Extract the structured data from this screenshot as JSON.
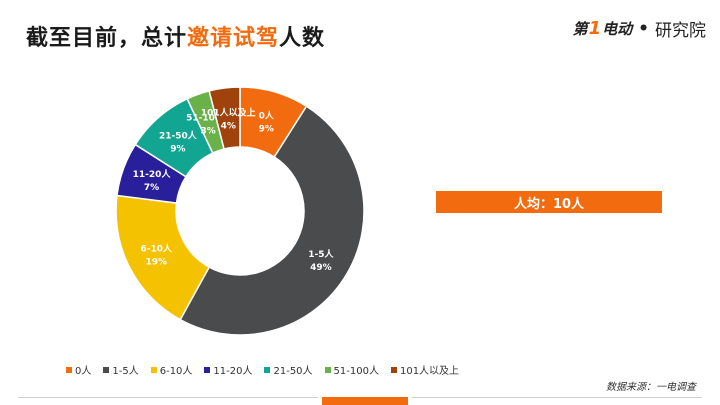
{
  "header": {
    "title_prefix": "截至目前，总计",
    "title_highlight": "邀请试驾",
    "title_suffix": "人数"
  },
  "logo": {
    "brand_a": "第",
    "brand_num": "1",
    "brand_b": "电动",
    "dot": "•",
    "brand_c": "研究院"
  },
  "summary": {
    "average_label": "人均：10人"
  },
  "source": "数据来源：一电调查",
  "colors": {
    "accent": "#f26b0f",
    "slices": [
      "#f26b0f",
      "#4a4b4d",
      "#f5c200",
      "#2a1f9a",
      "#12a592",
      "#6ab14a",
      "#a0420c"
    ]
  },
  "chart_data": {
    "type": "pie",
    "donut": true,
    "categories": [
      "0人",
      "1-5人",
      "6-10人",
      "11-20人",
      "21-50人",
      "51-100人",
      "101人以及上"
    ],
    "values": [
      9,
      49,
      19,
      7,
      9,
      3,
      4
    ],
    "value_labels": [
      "9%",
      "49%",
      "19%",
      "7%",
      "9%",
      "3%",
      "4%"
    ],
    "legend_position": "bottom"
  }
}
